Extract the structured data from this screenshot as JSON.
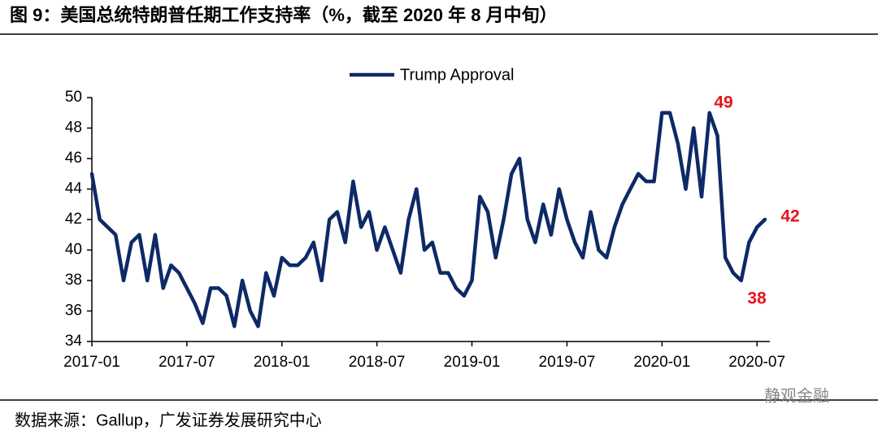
{
  "chart_data": {
    "type": "line",
    "title": "图 9：美国总统特朗普任期工作支持率（%，截至 2020 年 8 月中旬）",
    "source": "数据来源：Gallup，广发证券发展研究中心",
    "watermark": "静观金融",
    "categories": [
      "2017-01",
      null,
      null,
      null,
      null,
      null,
      null,
      null,
      null,
      null,
      null,
      null,
      "2017-07",
      null,
      null,
      null,
      null,
      null,
      null,
      null,
      null,
      null,
      null,
      null,
      "2018-01",
      null,
      null,
      null,
      null,
      null,
      null,
      null,
      null,
      null,
      null,
      null,
      "2018-07",
      null,
      null,
      null,
      null,
      null,
      null,
      null,
      null,
      null,
      null,
      null,
      "2019-01",
      null,
      null,
      null,
      null,
      null,
      null,
      null,
      null,
      null,
      null,
      null,
      "2019-07",
      null,
      null,
      null,
      null,
      null,
      null,
      null,
      null,
      null,
      null,
      null,
      "2020-01",
      null,
      null,
      null,
      null,
      null,
      null,
      null,
      null,
      null,
      null,
      null,
      "2020-07",
      null
    ],
    "series": [
      {
        "name": "Trump Approval",
        "color": "#0d2a66",
        "values": [
          45,
          42,
          41.5,
          41,
          38,
          40.5,
          41,
          38,
          41,
          37.5,
          39,
          38.5,
          37.5,
          36.5,
          35.2,
          37.5,
          37.5,
          37,
          35,
          38,
          36,
          35,
          38.5,
          37,
          39.5,
          39,
          39,
          39.5,
          40.5,
          38,
          42,
          42.5,
          40.5,
          44.5,
          41.5,
          42.5,
          40,
          41.5,
          40,
          38.5,
          42,
          44,
          40,
          40.5,
          38.5,
          38.5,
          37.5,
          37,
          38,
          43.5,
          42.5,
          39.5,
          42,
          45,
          46,
          42,
          40.5,
          43,
          41,
          44,
          42,
          40.5,
          39.5,
          42.5,
          40,
          39.5,
          41.5,
          43,
          44,
          45,
          44.5,
          44.5,
          49,
          49,
          47,
          44,
          48,
          43.5,
          49,
          47.5,
          39.5,
          38.5,
          38,
          40.5,
          41.5,
          42
        ]
      }
    ],
    "annotations": [
      "49",
      "38",
      "42"
    ],
    "ylim": [
      34,
      50
    ],
    "yticks": [
      34,
      36,
      38,
      40,
      42,
      44,
      46,
      48,
      50
    ],
    "legend": "top"
  }
}
